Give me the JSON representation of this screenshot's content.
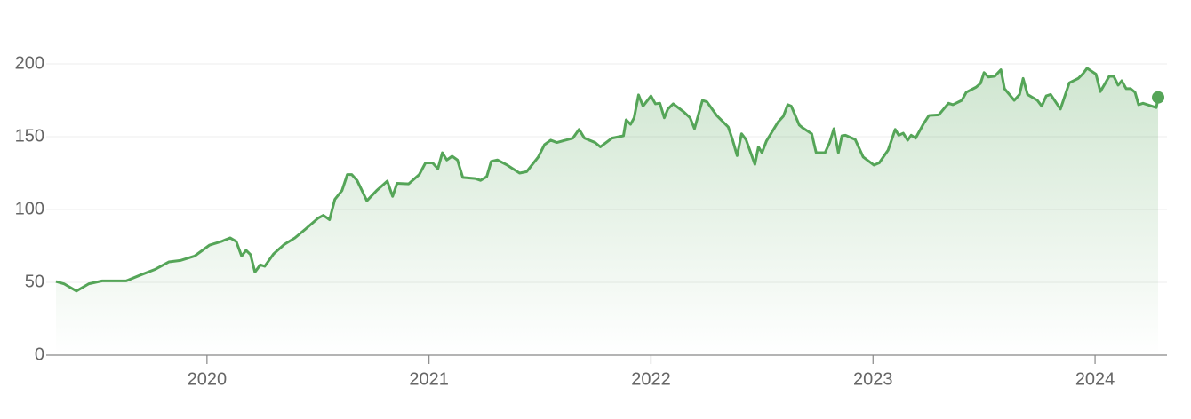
{
  "chart_data": {
    "type": "line",
    "color": "#55a558",
    "grid": true,
    "xlim": [
      2019.276,
      2024.324
    ],
    "xticks": [
      2020,
      2021,
      2022,
      2023,
      2024
    ],
    "ylim": [
      0,
      220
    ],
    "yticks": [
      0,
      50,
      100,
      150,
      200
    ],
    "x": [
      2019.32,
      2019.356,
      2019.412,
      2019.468,
      2019.528,
      2019.588,
      2019.636,
      2019.7,
      2019.768,
      2019.828,
      2019.88,
      2019.944,
      2020.012,
      2020.064,
      2020.104,
      2020.132,
      2020.156,
      2020.176,
      2020.196,
      2020.216,
      2020.24,
      2020.26,
      2020.3,
      2020.348,
      2020.396,
      2020.444,
      2020.5,
      2020.524,
      2020.552,
      2020.576,
      2020.608,
      2020.632,
      2020.652,
      2020.676,
      2020.72,
      2020.764,
      2020.812,
      2020.836,
      2020.856,
      2020.908,
      2020.956,
      2020.984,
      2021.016,
      2021.04,
      2021.06,
      2021.08,
      2021.104,
      2021.128,
      2021.152,
      2021.208,
      2021.232,
      2021.26,
      2021.28,
      2021.308,
      2021.352,
      2021.408,
      2021.44,
      2021.492,
      2021.52,
      2021.548,
      2021.576,
      2021.648,
      2021.676,
      2021.7,
      2021.748,
      2021.772,
      2021.824,
      2021.876,
      2021.888,
      2021.908,
      2021.924,
      2021.944,
      2021.964,
      2022.0,
      2022.02,
      2022.04,
      2022.06,
      2022.076,
      2022.1,
      2022.148,
      2022.176,
      2022.196,
      2022.232,
      2022.252,
      2022.296,
      2022.348,
      2022.368,
      2022.388,
      2022.408,
      2022.428,
      2022.468,
      2022.484,
      2022.5,
      2022.52,
      2022.572,
      2022.596,
      2022.616,
      2022.632,
      2022.668,
      2022.684,
      2022.724,
      2022.744,
      2022.784,
      2022.804,
      2022.824,
      2022.844,
      2022.86,
      2022.876,
      2022.92,
      2022.956,
      2023.004,
      2023.028,
      2023.068,
      2023.1,
      2023.116,
      2023.136,
      2023.156,
      2023.172,
      2023.192,
      2023.228,
      2023.252,
      2023.296,
      2023.34,
      2023.36,
      2023.4,
      2023.42,
      2023.464,
      2023.484,
      2023.5,
      2023.52,
      2023.548,
      2023.576,
      2023.592,
      2023.636,
      2023.66,
      2023.676,
      2023.696,
      2023.74,
      2023.76,
      2023.78,
      2023.8,
      2023.844,
      2023.884,
      2023.924,
      2023.944,
      2023.964,
      2024.004,
      2024.024,
      2024.064,
      2024.084,
      2024.104,
      2024.12,
      2024.14,
      2024.16,
      2024.18,
      2024.196,
      2024.216,
      2024.256,
      2024.276,
      2024.284
    ],
    "values": [
      50.6,
      49,
      44,
      49,
      51,
      51,
      51,
      55,
      59,
      64,
      65,
      68,
      75.6,
      78,
      80.5,
      78,
      68,
      72,
      69,
      57,
      62,
      61,
      69.5,
      76,
      80.5,
      86.6,
      94,
      96,
      93,
      107,
      113,
      124,
      124,
      120,
      106,
      113,
      119.5,
      109,
      118,
      117.6,
      124,
      132,
      132,
      128,
      139,
      134,
      136.6,
      134,
      122,
      121.3,
      120,
      122.6,
      133,
      134,
      130.5,
      125,
      126,
      136,
      144.5,
      147.6,
      146,
      149,
      155,
      149,
      146,
      143,
      149,
      150.6,
      161.6,
      158.5,
      163,
      178.7,
      171,
      178,
      172.6,
      173,
      163,
      169,
      172.6,
      167,
      163,
      155.5,
      175,
      174,
      164.6,
      156.7,
      147.6,
      137,
      152,
      148,
      131,
      143,
      139,
      147,
      160,
      164,
      172,
      171,
      158,
      156,
      152,
      139,
      139,
      145.7,
      155.5,
      139,
      150.6,
      151,
      148,
      136,
      130.5,
      132,
      140.8,
      155,
      151,
      152.4,
      147.6,
      151,
      149,
      159,
      164.6,
      165,
      173,
      172,
      175,
      180.5,
      184,
      186.6,
      194,
      191,
      191.5,
      196,
      183,
      175,
      179,
      190,
      179,
      175,
      171,
      178,
      179,
      169,
      187,
      190,
      193,
      197,
      193,
      181,
      191.5,
      191.5,
      185.4,
      188.4,
      183,
      183,
      180.5,
      172,
      173,
      171,
      170,
      177
    ]
  }
}
